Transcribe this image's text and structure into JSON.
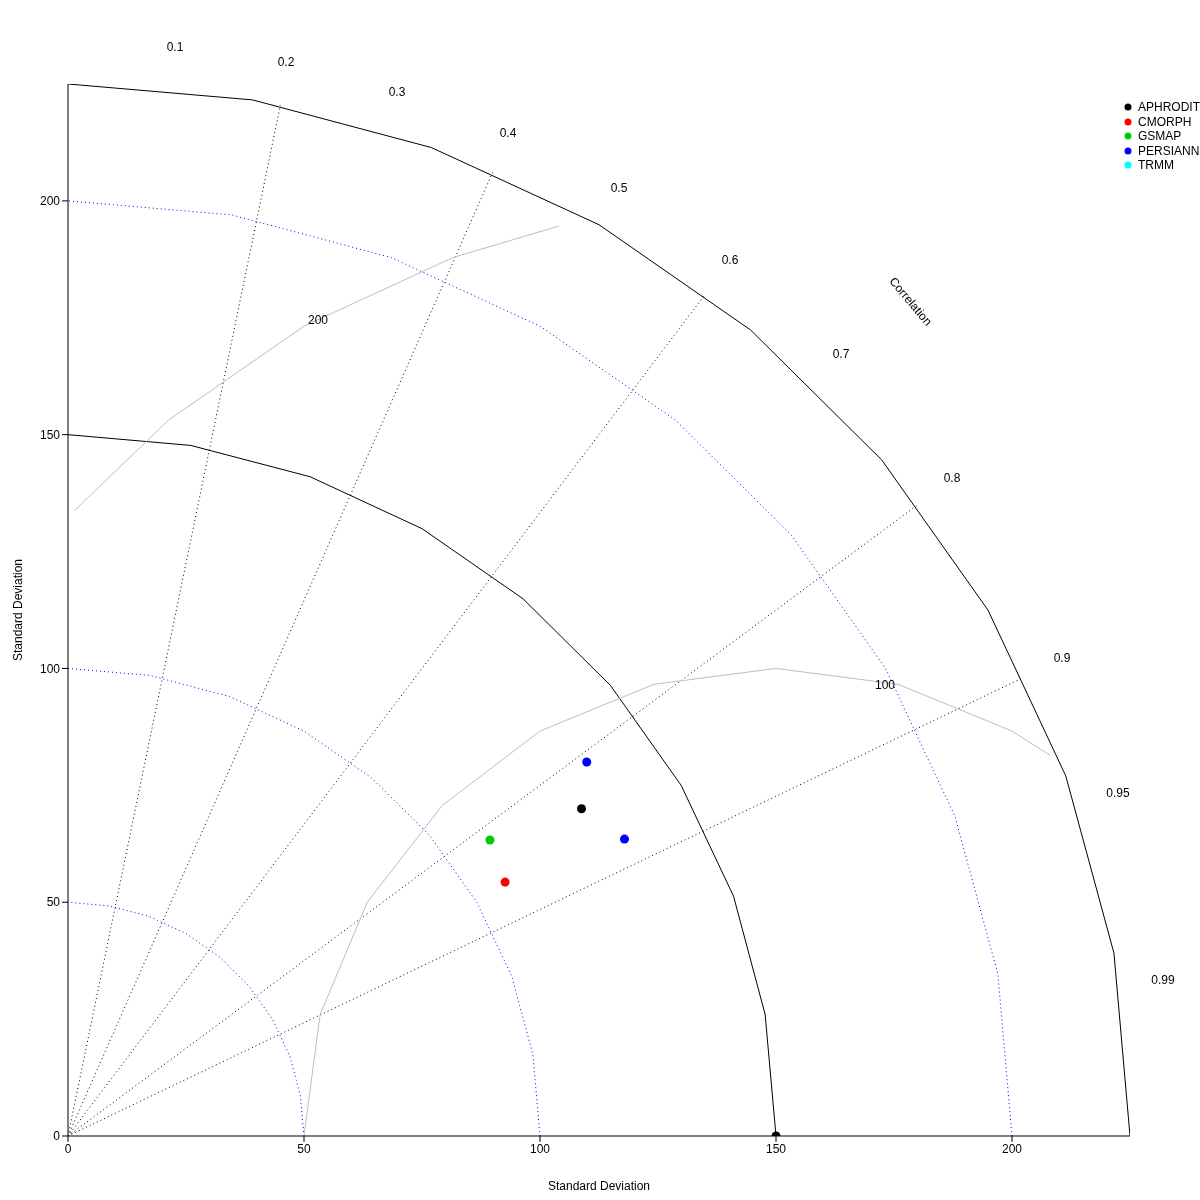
{
  "chart_data": {
    "type": "scatter",
    "xlabel": "Standard Deviation",
    "ylabel": "Standard Deviation",
    "xlim": [
      0,
      225
    ],
    "ylim": [
      0,
      225
    ],
    "xticks": [
      0,
      50,
      100,
      150,
      200
    ],
    "yticks": [
      0,
      50,
      100,
      150,
      200
    ],
    "grid": false,
    "legend": "top right",
    "marker": "circle",
    "annotations": [
      "0.1",
      "0.2",
      "0.3",
      "0.4",
      "0.5",
      "0.6",
      "0.7",
      "0.8",
      "0.9",
      "0.95",
      "0.99",
      "Correlation",
      "200",
      "100"
    ],
    "series": [
      {
        "type": "line",
        "marker": "none",
        "color": "#0000ff",
        "line_style": "dotted",
        "x": [
          50,
          49.2,
          47,
          43.3,
          38.3,
          32.1,
          25,
          17.1,
          8.7,
          0
        ],
        "values": [
          0,
          8.7,
          17.1,
          25,
          32.1,
          38.3,
          43.3,
          47,
          49.2,
          50
        ]
      },
      {
        "type": "line",
        "marker": "none",
        "color": "#0000ff",
        "line_style": "dotted",
        "x": [
          100,
          98.5,
          94,
          86.6,
          76.6,
          64.3,
          50,
          34.2,
          17.4,
          0
        ],
        "values": [
          0,
          17.4,
          34.2,
          50,
          64.3,
          76.6,
          86.6,
          94,
          98.5,
          100
        ]
      },
      {
        "type": "line",
        "marker": "none",
        "color": "#000000",
        "line_style": "solid",
        "x": [
          150,
          147.7,
          141,
          129.9,
          114.9,
          96.4,
          75,
          51.3,
          26,
          0
        ],
        "values": [
          0,
          26,
          51.3,
          75,
          96.4,
          114.9,
          129.9,
          141,
          147.7,
          150
        ]
      },
      {
        "type": "line",
        "marker": "none",
        "color": "#0000ff",
        "line_style": "dotted",
        "x": [
          200,
          197,
          187.9,
          173.2,
          153.2,
          128.6,
          100,
          68.4,
          34.7,
          0
        ],
        "values": [
          0,
          34.7,
          68.4,
          100,
          128.6,
          153.2,
          173.2,
          187.9,
          197,
          200
        ]
      },
      {
        "type": "line",
        "marker": "none",
        "color": "#000000",
        "line_style": "solid",
        "x": [
          225,
          221.6,
          211.4,
          194.9,
          172.4,
          144.6,
          112.5,
          77,
          39.1,
          0
        ],
        "values": [
          0,
          39.1,
          77,
          112.5,
          144.6,
          172.4,
          194.9,
          211.4,
          221.6,
          225
        ]
      },
      {
        "type": "line",
        "marker": "none",
        "color": "#000000",
        "line_style": "dotted",
        "x": [
          0,
          45
        ],
        "values": [
          0,
          220.5
        ]
      },
      {
        "type": "line",
        "marker": "none",
        "color": "#000000",
        "line_style": "dotted",
        "x": [
          0,
          90
        ],
        "values": [
          0,
          206.2
        ]
      },
      {
        "type": "line",
        "marker": "none",
        "color": "#000000",
        "line_style": "dotted",
        "x": [
          0,
          135
        ],
        "values": [
          0,
          180
        ]
      },
      {
        "type": "line",
        "marker": "none",
        "color": "#000000",
        "line_style": "dotted",
        "x": [
          0,
          180
        ],
        "values": [
          0,
          135
        ]
      },
      {
        "type": "line",
        "marker": "none",
        "color": "#000000",
        "line_style": "dotted",
        "x": [
          0,
          202.5
        ],
        "values": [
          0,
          98.1
        ]
      },
      {
        "type": "line",
        "marker": "none",
        "color": "#bebebe",
        "line_style": "solid",
        "x": [
          50,
          53.4,
          63.4,
          79.3,
          100,
          124.1,
          150,
          175.9,
          200,
          208.1
        ],
        "values": [
          0,
          25.9,
          50,
          70.7,
          86.6,
          96.6,
          100,
          96.6,
          86.6,
          81.4
        ]
      },
      {
        "type": "line",
        "marker": "none",
        "color": "#bebebe",
        "line_style": "solid",
        "x": [
          1.4,
          21.4,
          50,
          81.6,
          104
        ],
        "values": [
          133.8,
          153.2,
          173.2,
          187.9,
          194.6
        ]
      },
      {
        "type": "scatter",
        "color": "#000000",
        "marker": "circle",
        "x": [
          150
        ],
        "values": [
          0
        ]
      },
      {
        "name": "APHRODIT",
        "color": "#000000",
        "x": [
          108.8
        ],
        "values": [
          70.0
        ]
      },
      {
        "name": "CMORPH",
        "color": "#ff0000",
        "x": [
          92.6
        ],
        "values": [
          54.3
        ]
      },
      {
        "name": "GSMAP",
        "color": "#00cd00",
        "x": [
          89.4
        ],
        "values": [
          63.3
        ]
      },
      {
        "name": "PERSIANN",
        "color": "#0000ff",
        "x": [
          109.9,
          117.9
        ],
        "values": [
          80.0,
          63.5
        ]
      },
      {
        "name": "TRMM",
        "color": "#00ffff",
        "x": [
          null
        ],
        "values": [
          null
        ]
      }
    ]
  }
}
